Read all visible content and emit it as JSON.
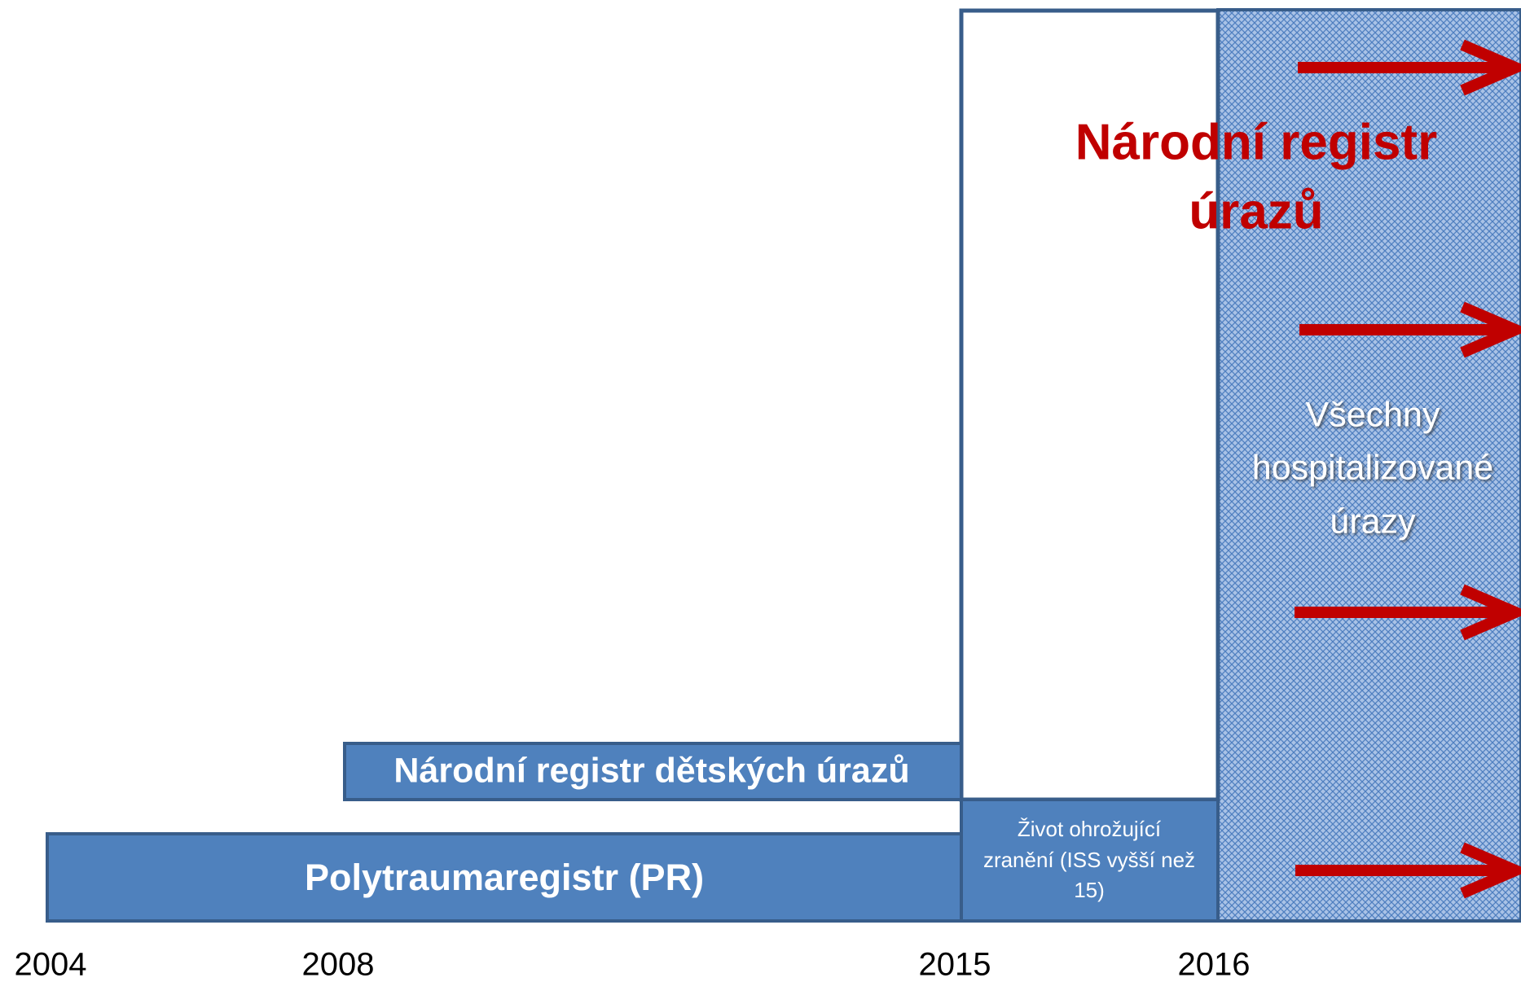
{
  "timeline": {
    "years": [
      "2004",
      "2008",
      "2015",
      "2016"
    ]
  },
  "registers": [
    {
      "label": "Polytraumaregistr (PR)"
    },
    {
      "label": "Národní registr dětských úrazů"
    },
    {
      "label_lines": [
        "Život ohrožující",
        "zranění (ISS vyšší než",
        "15)"
      ]
    },
    {
      "label_lines": [
        "Všechny",
        "hospitalizované",
        "úrazy"
      ]
    }
  ],
  "national_register": {
    "title_lines": [
      "Národní registr",
      "úrazů"
    ]
  }
}
